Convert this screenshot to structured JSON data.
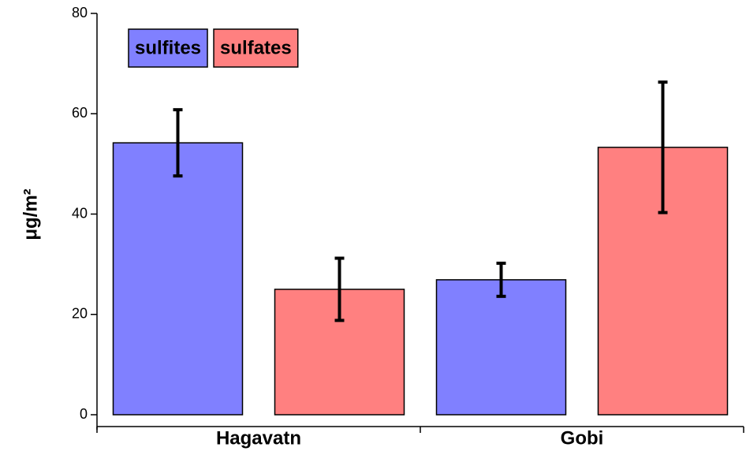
{
  "chart_data": {
    "type": "bar",
    "y_label": "μg/m²",
    "categories": [
      "Hagavatn",
      "Gobi"
    ],
    "series": [
      {
        "name": "sulfites",
        "color": "#8080ff",
        "values": [
          54.2,
          26.9
        ],
        "errors": [
          6.6,
          3.3
        ]
      },
      {
        "name": "sulfates",
        "color": "#ff8080",
        "values": [
          25.0,
          53.3
        ],
        "errors": [
          6.2,
          13.0
        ]
      }
    ],
    "ylim": [
      0,
      80
    ],
    "yticks": [
      0,
      20,
      40,
      60,
      80
    ],
    "legend": "top-left"
  }
}
